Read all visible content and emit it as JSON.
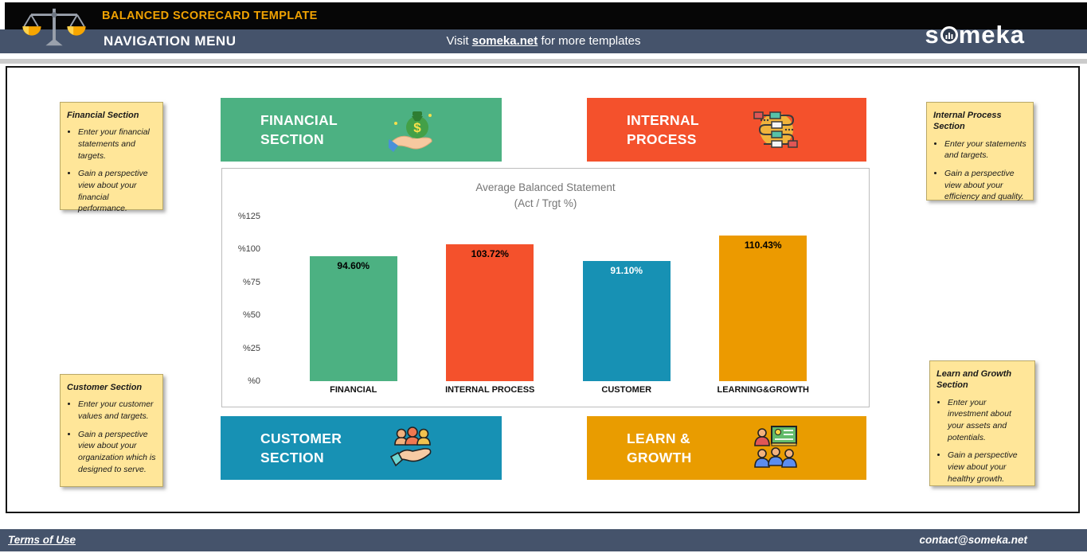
{
  "header": {
    "template_title": "BALANCED SCORECARD TEMPLATE",
    "nav_title": "NAVIGATION MENU",
    "visit_prefix": "Visit ",
    "visit_link": "someka.net",
    "visit_suffix": " for more templates",
    "logo_left": "s",
    "logo_right": "meka",
    "colors": {
      "topbar": "#060606",
      "navbar": "#45536B",
      "title_orange": "#F0A202"
    }
  },
  "notes": [
    {
      "title": "Financial Section",
      "bullets": [
        "Enter your financial statements and targets.",
        "Gain a perspective view about your financial performance."
      ]
    },
    {
      "title": "Internal Process Section",
      "bullets": [
        "Enter your statements and targets.",
        "Gain a perspective view about your efficiency and quality."
      ]
    },
    {
      "title": "Customer Section",
      "bullets": [
        "Enter your customer values and targets.",
        "Gain a perspective view about your organization which is designed to serve."
      ]
    },
    {
      "title": "Learn and Growth Section",
      "bullets": [
        "Enter your investment about your assets and potentials.",
        "Gain a perspective view about your healthy growth."
      ]
    }
  ],
  "buttons": [
    {
      "line1": "FINANCIAL",
      "line2": "SECTION",
      "color": "#4CB182",
      "icon": "money-bag-hand-icon"
    },
    {
      "line1": "INTERNAL",
      "line2": "PROCESS",
      "color": "#F4512C",
      "icon": "process-flowchart-icon"
    },
    {
      "line1": "CUSTOMER",
      "line2": "SECTION",
      "color": "#1791B4",
      "icon": "customers-hand-icon"
    },
    {
      "line1": "LEARN &",
      "line2": "GROWTH",
      "color": "#E99C00",
      "icon": "training-board-icon"
    }
  ],
  "chart_data": {
    "type": "bar",
    "title": "Average Balanced Statement",
    "subtitle": "(Act / Trgt %)",
    "categories": [
      "FINANCIAL",
      "INTERNAL PROCESS",
      "CUSTOMER",
      "LEARNING&GROWTH"
    ],
    "values": [
      94.6,
      103.72,
      91.1,
      110.43
    ],
    "value_labels": [
      "94.60%",
      "103.72%",
      "91.10%",
      "110.43%"
    ],
    "bar_colors": [
      "#4CB182",
      "#F4512C",
      "#1791B4",
      "#EC9A00"
    ],
    "value_label_colors": [
      "#000000",
      "#000000",
      "#FFFFFF",
      "#000000"
    ],
    "y_ticks": [
      "%125",
      "%100",
      "%75",
      "%50",
      "%25",
      "%0"
    ],
    "ylim": [
      0,
      125
    ],
    "grid": false,
    "legend": "none"
  },
  "footer": {
    "terms": "Terms of Use",
    "contact": "contact@someka.net"
  }
}
